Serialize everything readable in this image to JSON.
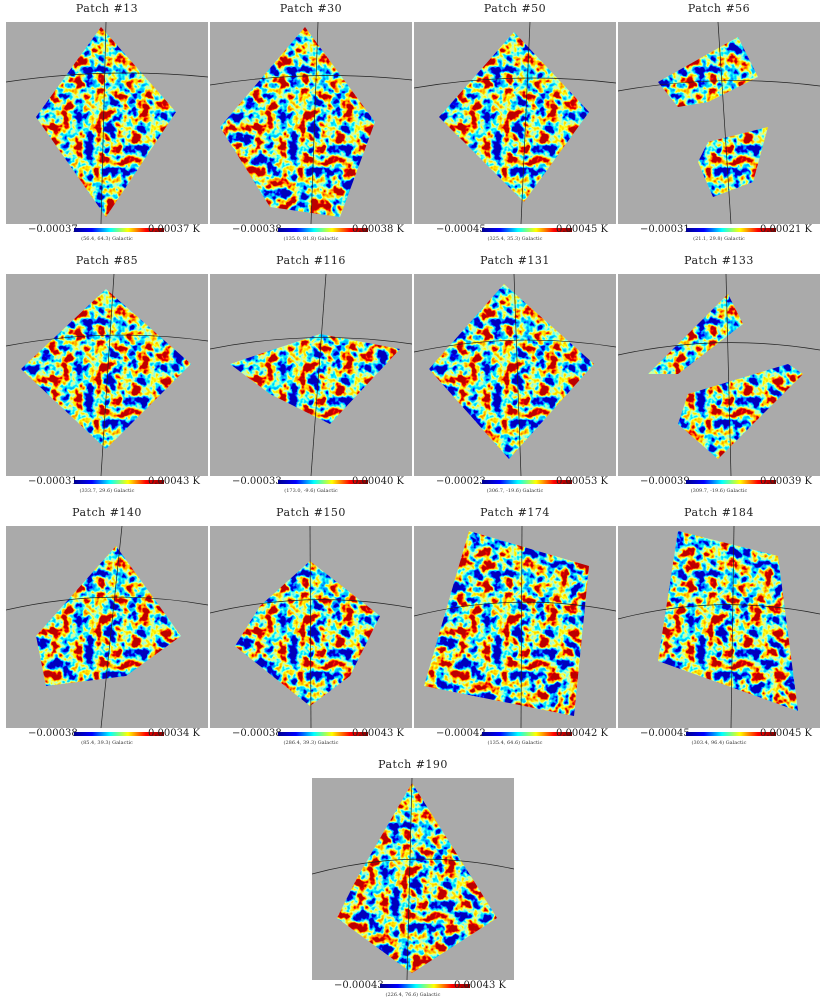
{
  "colors": {
    "background": "#aaaaaa",
    "colormap": [
      "#00008f",
      "#0000ff",
      "#00ffff",
      "#ffff00",
      "#ff0000",
      "#800000"
    ]
  },
  "panels": [
    {
      "title": "Patch #13",
      "min": "−0.00037",
      "max": "0.00037 K",
      "subtitle": "(56.4, 64.3) Galactic"
    },
    {
      "title": "Patch #30",
      "min": "−0.00038",
      "max": "0.00038 K",
      "subtitle": "(135.0, 81.8) Galactic"
    },
    {
      "title": "Patch #50",
      "min": "−0.00045",
      "max": "0.00045 K",
      "subtitle": "(325.4, 35.3) Galactic"
    },
    {
      "title": "Patch #56",
      "min": "−0.00031",
      "max": "0.00021 K",
      "subtitle": "(21.1, 29.8) Galactic"
    },
    {
      "title": "Patch #85",
      "min": "−0.00031",
      "max": "0.00043 K",
      "subtitle": "(333.7, 29.6) Galactic"
    },
    {
      "title": "Patch #116",
      "min": "−0.00033",
      "max": "0.00040 K",
      "subtitle": "(173.0, -9.6) Galactic"
    },
    {
      "title": "Patch #131",
      "min": "−0.00023",
      "max": "0.00053 K",
      "subtitle": "(306.7, -19.6) Galactic"
    },
    {
      "title": "Patch #133",
      "min": "−0.00039",
      "max": "0.00039 K",
      "subtitle": "(309.7, -19.6) Galactic"
    },
    {
      "title": "Patch #140",
      "min": "−0.00038",
      "max": "0.00034 K",
      "subtitle": "(85.4, 39.3) Galactic"
    },
    {
      "title": "Patch #150",
      "min": "−0.00038",
      "max": "0.00043 K",
      "subtitle": "(286.4, 39.3) Galactic"
    },
    {
      "title": "Patch #174",
      "min": "−0.00042",
      "max": "0.00042 K",
      "subtitle": "(135.4, 64.6) Galactic"
    },
    {
      "title": "Patch #184",
      "min": "−0.00045",
      "max": "0.00045 K",
      "subtitle": "(303.4, 96.4) Galactic"
    },
    {
      "title": "Patch #190",
      "min": "−0.00043",
      "max": "0.00043 K",
      "subtitle": "(226.4, 76.6) Galactic"
    }
  ]
}
